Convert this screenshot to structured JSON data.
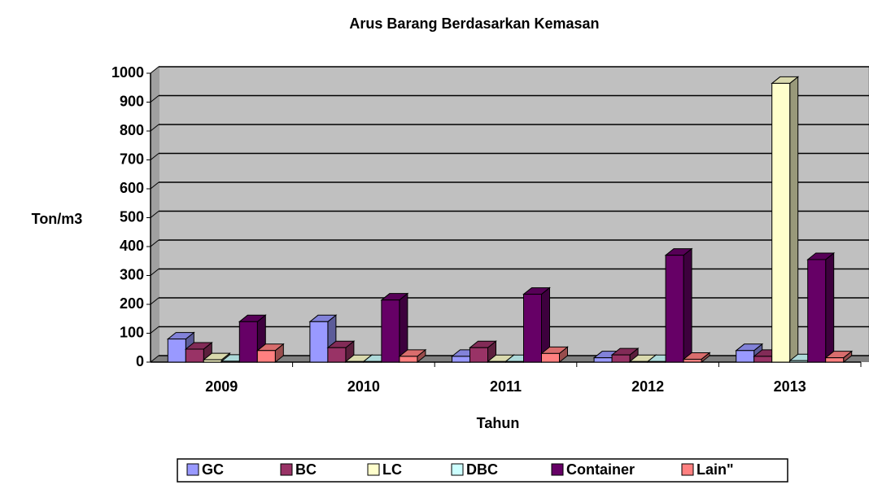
{
  "chart_data": {
    "type": "bar3d",
    "title": "Arus Barang Berdasarkan Kemasan",
    "x_label": "Tahun",
    "y_label": "Ton/m3",
    "categories": [
      "2009",
      "2010",
      "2011",
      "2012",
      "2013"
    ],
    "series": [
      {
        "name": "GC",
        "color": "#9999ff",
        "values": [
          80,
          140,
          20,
          15,
          40
        ]
      },
      {
        "name": "BC",
        "color": "#993366",
        "values": [
          45,
          50,
          50,
          25,
          20
        ]
      },
      {
        "name": "LC",
        "color": "#ffffcc",
        "values": [
          8,
          2,
          2,
          2,
          965
        ]
      },
      {
        "name": "DBC",
        "color": "#ccffff",
        "values": [
          3,
          2,
          2,
          2,
          5
        ]
      },
      {
        "name": "Container",
        "color": "#660066",
        "values": [
          140,
          215,
          235,
          370,
          355
        ]
      },
      {
        "name": "Lain\"",
        "color": "#ff8080",
        "values": [
          40,
          20,
          30,
          10,
          15
        ]
      }
    ],
    "ylim": [
      0,
      1000
    ],
    "yticks": [
      0,
      100,
      200,
      300,
      400,
      500,
      600,
      700,
      800,
      900,
      1000
    ],
    "grid": true,
    "legend": "bottom"
  }
}
